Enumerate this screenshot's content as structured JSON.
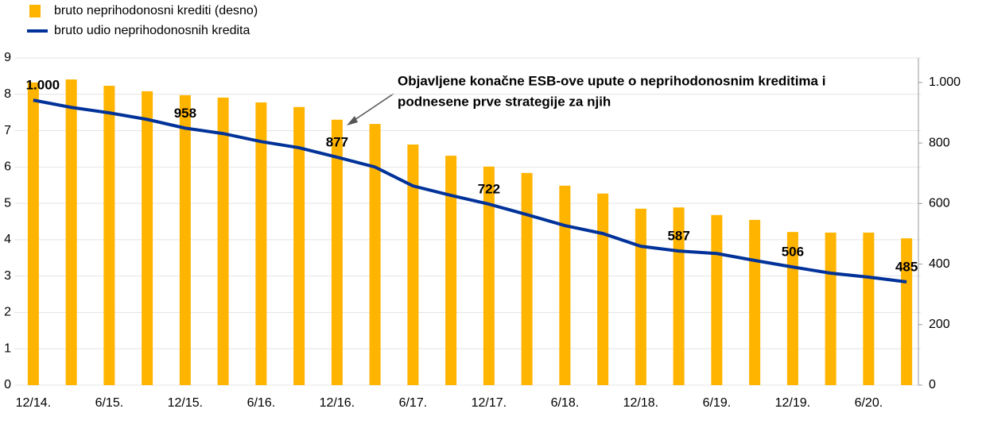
{
  "chart_data": {
    "type": "bar-line",
    "annotation": [
      "Objavljene konačne ESB-ove upute o neprihodonosnim kreditima i",
      "podnesene prve strategije za njih"
    ],
    "categories": [
      "12/14.",
      null,
      "6/15.",
      null,
      "12/15.",
      null,
      "6/16.",
      null,
      "12/16.",
      null,
      "6/17.",
      null,
      "12/17.",
      null,
      "6/18.",
      null,
      "12/18.",
      null,
      "6/19.",
      null,
      "12/19.",
      null,
      "6/20.",
      null
    ],
    "series": [
      {
        "name": "bruto neprihodonosni krediti (desno)",
        "color": "#ffb400",
        "type": "bar",
        "axis": "y2",
        "values": [
          1000,
          1010,
          989,
          971,
          958,
          950,
          934,
          919,
          877,
          863,
          795,
          758,
          722,
          701,
          659,
          633,
          583,
          587,
          562,
          546,
          506,
          504,
          504,
          485
        ],
        "value_labels": [
          "1.000",
          null,
          null,
          null,
          "958",
          null,
          null,
          null,
          "877",
          null,
          null,
          null,
          "722",
          null,
          null,
          null,
          null,
          "587",
          null,
          null,
          "506",
          null,
          null,
          "485"
        ]
      },
      {
        "name": "bruto udio neprihodonosnih kredita",
        "color": "#003299",
        "type": "line",
        "values": [
          7.84,
          7.64,
          7.49,
          7.31,
          7.07,
          6.92,
          6.7,
          6.53,
          6.27,
          6.0,
          5.48,
          5.22,
          4.98,
          4.69,
          4.39,
          4.17,
          3.82,
          3.69,
          3.62,
          3.43,
          3.25,
          3.08,
          2.97,
          2.84
        ]
      }
    ],
    "ylim": [
      0,
      9
    ],
    "yticks": [
      0,
      1,
      2,
      3,
      4,
      5,
      6,
      7,
      8,
      9
    ],
    "y2lim": [
      0,
      1081
    ],
    "y2ticks": [
      0,
      200,
      400,
      600,
      800,
      {
        "value": 1000,
        "label": "1.000"
      }
    ],
    "grid": true
  }
}
